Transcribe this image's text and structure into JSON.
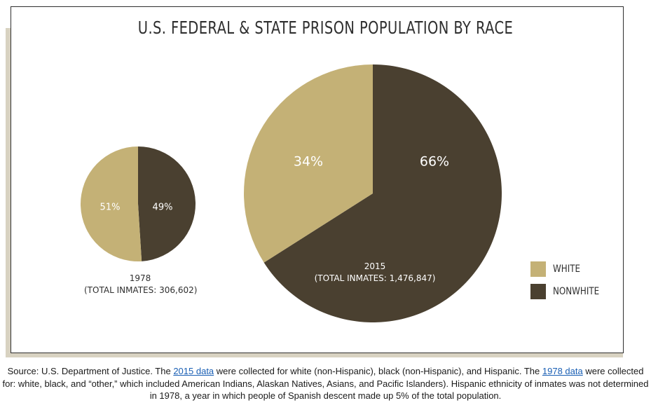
{
  "colors": {
    "white": "#c4b176",
    "nonwhite": "#4a4030"
  },
  "legend": {
    "position": "right",
    "items": [
      {
        "label": "WHITE",
        "color": "#c4b176"
      },
      {
        "label": "NONWHITE",
        "color": "#4a4030"
      }
    ]
  },
  "chart_data": {
    "type": "pie",
    "title": "U.S. FEDERAL & STATE PRISON POPULATION BY RACE",
    "charts": [
      {
        "year": "1978",
        "total_label": "(TOTAL INMATES: 306,602)",
        "total": 306602,
        "slices": [
          {
            "name": "WHITE",
            "value": 51,
            "label": "51%"
          },
          {
            "name": "NONWHITE",
            "value": 49,
            "label": "49%"
          }
        ]
      },
      {
        "year": "2015",
        "total_label": "(TOTAL INMATES: 1,476,847)",
        "total": 1476847,
        "slices": [
          {
            "name": "WHITE",
            "value": 34,
            "label": "34%"
          },
          {
            "name": "NONWHITE",
            "value": 66,
            "label": "66%"
          }
        ]
      }
    ]
  },
  "source": {
    "p1": "Source: U.S. Department of Justice. The ",
    "link1": "2015 data",
    "p2": " were collected for white (non-Hispanic), black (non-Hispanic), and Hispanic. The ",
    "link2": "1978 data",
    "p3": " were collected for: white, black, and “other,” which included American Indians, Alaskan Natives, Asians, and Pacific Islanders). Hispanic ethnicity of inmates was not determined in 1978, a year in which people of Spanish descent made up 5% of the total population."
  }
}
